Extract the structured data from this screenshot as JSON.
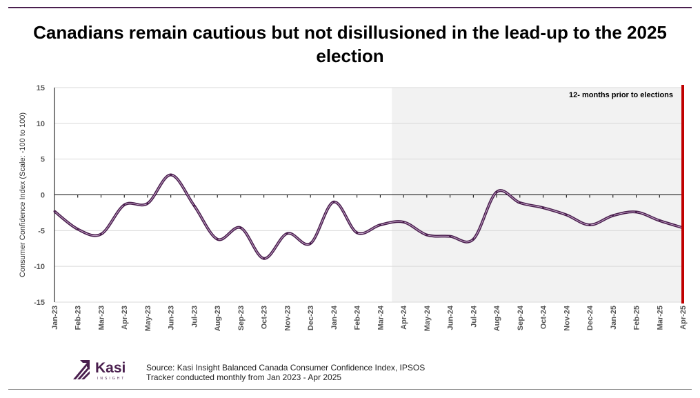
{
  "title": "Canadians remain cautious but not disillusioned in the lead-up to the 2025 election",
  "chart_data": {
    "type": "line",
    "title": "Canadians remain cautious but not disillusioned in the lead-up to the 2025 election",
    "ylabel": "Consumer Confidence Index  (Scale: -100 to 100)",
    "xlabel": "",
    "ylim": [
      -15,
      15
    ],
    "yticks": [
      15,
      10,
      5,
      0,
      -5,
      -10,
      -15
    ],
    "grid": "horizontal",
    "categories": [
      "Jan-23",
      "Feb-23",
      "Mar-23",
      "Apr-23",
      "May-23",
      "Jun-23",
      "Jul-23",
      "Aug-23",
      "Sep-23",
      "Oct-23",
      "Nov-23",
      "Dec-23",
      "Jan-24",
      "Feb-24",
      "Mar-24",
      "Apr-24",
      "May-24",
      "Jun-24",
      "Jul-24",
      "Aug-24",
      "Sep-24",
      "Oct-24",
      "Nov-24",
      "Dec-24",
      "Jan-25",
      "Feb-25",
      "Mar-25",
      "Apr-25"
    ],
    "values": [
      -2.3,
      -4.8,
      -5.5,
      -1.4,
      -1.2,
      2.8,
      -1.5,
      -6.2,
      -4.6,
      -8.9,
      -5.4,
      -6.8,
      -1.0,
      -5.3,
      -4.2,
      -3.8,
      -5.6,
      -5.8,
      -6.2,
      0.4,
      -1.1,
      -1.8,
      -2.8,
      -4.2,
      -2.9,
      -2.4,
      -3.6,
      -4.6
    ],
    "line_color": "#4a1f4e",
    "shaded_region": {
      "from": "Mar-24",
      "to": "Apr-25",
      "color": "#f2f2f2",
      "label": "12- months prior to elections"
    },
    "election_marker": {
      "at": "Apr-25",
      "color": "#c00000"
    }
  },
  "logo": {
    "name": "Kasi",
    "sub": "INSIGHT",
    "color": "#4a1f4e"
  },
  "source": [
    "Source: Kasi Insight Balanced Canada Consumer Confidence Index, IPSOS",
    "Tracker conducted monthly from Jan 2023 - Apr 2025"
  ]
}
